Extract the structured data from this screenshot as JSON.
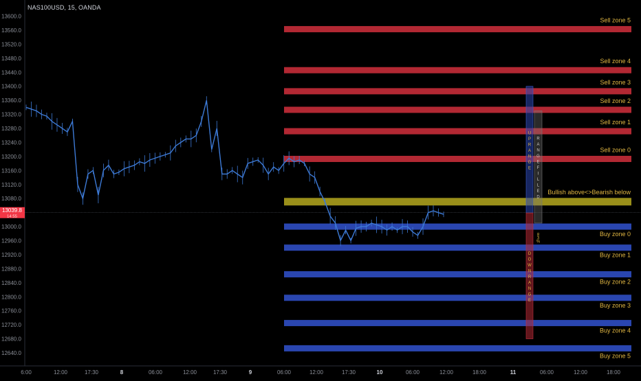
{
  "header": {
    "symbol_info": "NAS100USD, 15, OANDA"
  },
  "price_label": {
    "value": "13039.8",
    "sub": "14:55",
    "color": "#f23645"
  },
  "colors": {
    "sell_zone": "#b22833",
    "buy_zone": "#2a46b0",
    "pivot_zone": "#9a8f1a",
    "sell_label": "#e0b642",
    "buy_label": "#e0b642",
    "candle": "#3d7ad6",
    "background": "#000000",
    "axis_text": "#8a8e97"
  },
  "chart_data": {
    "type": "line",
    "title": "",
    "xlabel": "",
    "ylabel": "",
    "ylim": [
      12620,
      13600
    ],
    "y_ticks": [
      "13560.0",
      "13520.0",
      "13480.0",
      "13440.0",
      "13400.0",
      "13360.0",
      "13320.0",
      "13280.0",
      "13240.0",
      "13200.0",
      "13160.0",
      "13120.0",
      "13080.0",
      "13040.0",
      "13000.0",
      "12960.0",
      "12920.0",
      "12880.0",
      "12840.0",
      "12800.0",
      "12760.0",
      "12720.0",
      "12680.0",
      "12640.0",
      "13600.0"
    ],
    "x_ticks": [
      "6:00",
      "12:00",
      "17:30",
      "8",
      "06:00",
      "12:00",
      "17:30",
      "9",
      "06:00",
      "12:00",
      "17:30",
      "10",
      "06:00",
      "12:00",
      "18:00",
      "11",
      "06:00",
      "12:00",
      "18:00"
    ],
    "bold_x_ticks": [
      "8",
      "9",
      "10",
      "11"
    ],
    "series": [
      {
        "values": [
          13340,
          13335,
          13330,
          13320,
          13315,
          13300,
          13290,
          13280,
          13270,
          13300,
          13120,
          13080,
          13150,
          13160,
          13090,
          13160,
          13175,
          13150,
          13155,
          13165,
          13170,
          13175,
          13185,
          13180,
          13190,
          13195,
          13200,
          13205,
          13210,
          13230,
          13240,
          13250,
          13250,
          13260,
          13300,
          13360,
          13220,
          13280,
          13150,
          13150,
          13160,
          13150,
          13140,
          13180,
          13185,
          13190,
          13175,
          13150,
          13170,
          13160,
          13180,
          13195,
          13185,
          13190,
          13180,
          13150,
          13140,
          13100,
          13070,
          13030,
          13010,
          12960,
          12990,
          12960,
          12995,
          13000,
          13000,
          13010,
          13005,
          13000,
          12990,
          13000,
          12990,
          13000,
          13000,
          12985,
          12975,
          13000,
          13040,
          13045,
          13040,
          13035
        ]
      }
    ],
    "zones": [
      {
        "name": "Sell zone 5",
        "price": 13563,
        "kind": "sell"
      },
      {
        "name": "Sell zone 4",
        "price": 13446,
        "kind": "sell"
      },
      {
        "name": "Sell zone 3",
        "price": 13386,
        "kind": "sell"
      },
      {
        "name": "Sell zone 2",
        "price": 13333,
        "kind": "sell"
      },
      {
        "name": "Sell zone 1",
        "price": 13272,
        "kind": "sell"
      },
      {
        "name": "Sell zone 0",
        "price": 13193,
        "kind": "sell"
      },
      {
        "name": "Bullish above<>Bearish below",
        "price": 13071,
        "kind": "pivot"
      },
      {
        "name": "Buy zone 0",
        "price": 13000,
        "kind": "buy"
      },
      {
        "name": "Buy zone 1",
        "price": 12940,
        "kind": "buy"
      },
      {
        "name": "Buy zone 2",
        "price": 12864,
        "kind": "buy"
      },
      {
        "name": "Buy zone 3",
        "price": 12797,
        "kind": "buy"
      },
      {
        "name": "Buy zone 4",
        "price": 12725,
        "kind": "buy"
      },
      {
        "name": "Buy zone 5",
        "price": 12653,
        "kind": "buy"
      }
    ],
    "range_boxes": [
      {
        "label": "UP RANGE",
        "from": 13039,
        "to": 13400,
        "kind": "up"
      },
      {
        "label": "DOWN RANGE",
        "from": 12680,
        "to": 13039,
        "kind": "down"
      },
      {
        "label": "RANGE FILLED",
        "from": 13010,
        "to": 13330,
        "kind": "filled"
      },
      {
        "label": "83 %",
        "from": 12955,
        "to": 12985,
        "kind": "pct"
      }
    ]
  }
}
